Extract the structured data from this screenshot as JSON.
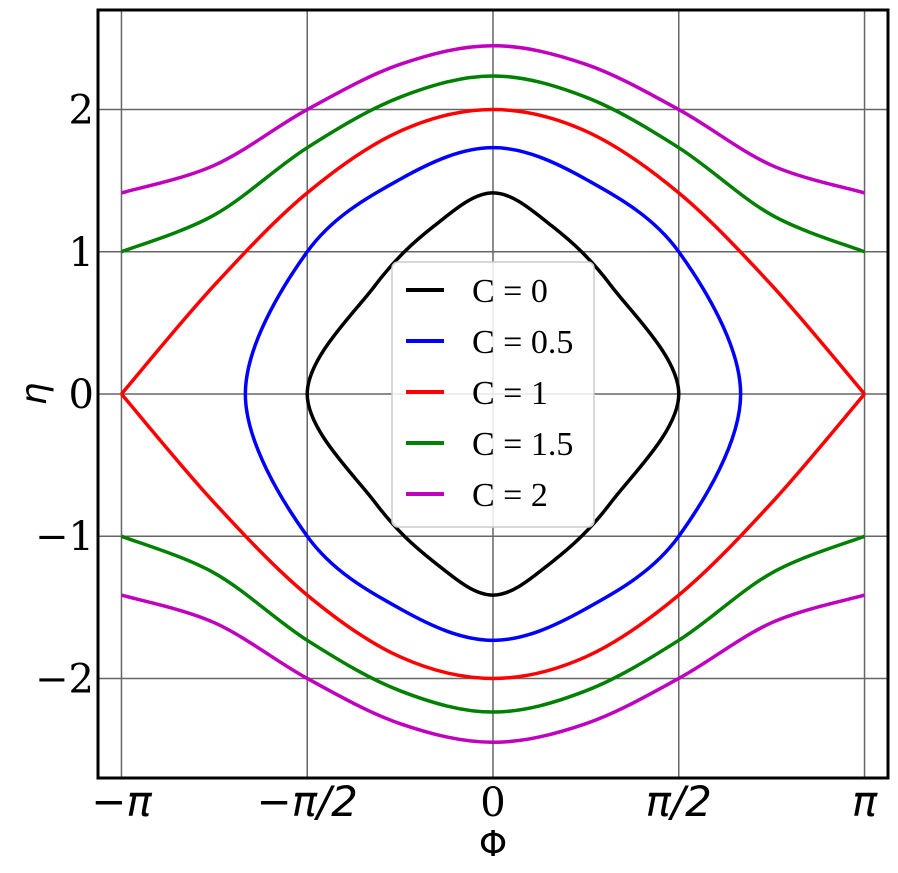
{
  "chart_data": {
    "type": "line",
    "title": "",
    "xlabel": "Φ",
    "ylabel": "η",
    "xlim": [
      -3.34,
      3.34
    ],
    "ylim": [
      -2.7,
      2.7
    ],
    "grid": true,
    "legend_position": "center",
    "x_ticks": [
      {
        "value": -3.14159,
        "label": "−π"
      },
      {
        "value": -1.5708,
        "label": "−π/2"
      },
      {
        "value": 0,
        "label": "0"
      },
      {
        "value": 1.5708,
        "label": "π/2"
      },
      {
        "value": 3.14159,
        "label": "π"
      }
    ],
    "y_ticks": [
      {
        "value": -2,
        "label": "−2"
      },
      {
        "value": -1,
        "label": "−1"
      },
      {
        "value": 0,
        "label": "0"
      },
      {
        "value": 1,
        "label": "1"
      },
      {
        "value": 2,
        "label": "2"
      }
    ],
    "x": [
      -3.14159,
      -2.35619,
      -1.5708,
      -0.7854,
      0,
      0.7854,
      1.5708,
      2.35619,
      3.14159
    ],
    "series": [
      {
        "name": "C = 0",
        "color": "#000000",
        "closed": true,
        "points": [
          [
            -1.5708,
            0
          ],
          [
            -1.0,
            0.76
          ],
          [
            -0.5,
            1.18
          ],
          [
            0,
            1.414
          ],
          [
            0.5,
            1.18
          ],
          [
            1.0,
            0.76
          ],
          [
            1.5708,
            0
          ],
          [
            1.0,
            -0.76
          ],
          [
            0.5,
            -1.18
          ],
          [
            0,
            -1.414
          ],
          [
            -0.5,
            -1.18
          ],
          [
            -1.0,
            -0.76
          ]
        ]
      },
      {
        "name": "C = 0.5",
        "color": "#0000ff",
        "closed": true,
        "points": [
          [
            -2.094,
            0
          ],
          [
            -1.5708,
            1.0
          ],
          [
            -0.7854,
            1.51
          ],
          [
            0,
            1.732
          ],
          [
            0.7854,
            1.51
          ],
          [
            1.5708,
            1.0
          ],
          [
            2.094,
            0
          ],
          [
            1.5708,
            -1.0
          ],
          [
            0.7854,
            -1.51
          ],
          [
            0,
            -1.732
          ],
          [
            -0.7854,
            -1.51
          ],
          [
            -1.5708,
            -1.0
          ]
        ]
      },
      {
        "name": "C = 1",
        "color": "#ff0000",
        "closed": false,
        "values": [
          0,
          0.765,
          1.414,
          1.848,
          2.0,
          1.848,
          1.414,
          0.765,
          0
        ],
        "values_negative": [
          0,
          -0.765,
          -1.414,
          -1.848,
          -2.0,
          -1.848,
          -1.414,
          -0.765,
          0
        ]
      },
      {
        "name": "C = 1.5",
        "color": "#008000",
        "closed": false,
        "values": [
          1.0,
          1.259,
          1.732,
          2.087,
          2.236,
          2.087,
          1.732,
          1.259,
          1.0
        ],
        "values_negative": [
          -1.0,
          -1.259,
          -1.732,
          -2.087,
          -2.236,
          -2.087,
          -1.732,
          -1.259,
          -1.0
        ]
      },
      {
        "name": "C = 2",
        "color": "#bf00bf",
        "closed": false,
        "values": [
          1.414,
          1.608,
          2.0,
          2.318,
          2.449,
          2.318,
          2.0,
          1.608,
          1.414
        ],
        "values_negative": [
          -1.414,
          -1.608,
          -2.0,
          -2.318,
          -2.449,
          -2.318,
          -2.0,
          -1.608,
          -1.414
        ]
      }
    ]
  }
}
